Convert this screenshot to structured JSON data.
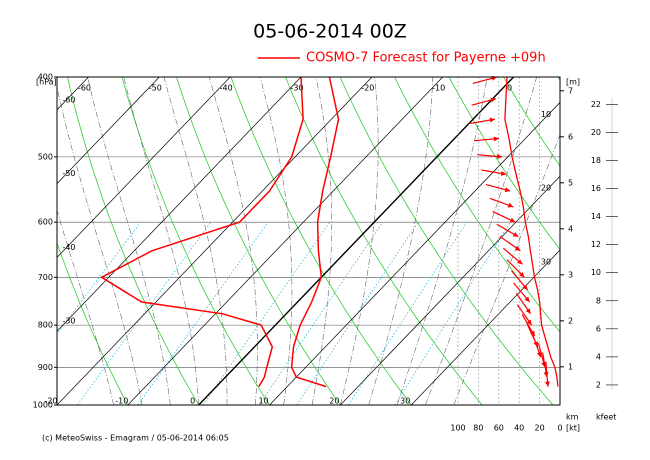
{
  "chart_data": {
    "type": "skewt",
    "title": "05-06-2014  00Z",
    "ylabel": "[hPa]",
    "log_y": true,
    "ylim": [
      1000,
      400
    ],
    "yticks": [
      400,
      500,
      600,
      700,
      800,
      900,
      1000
    ],
    "xlim": [
      -20,
      51
    ],
    "xticks": [
      -60,
      -50,
      -40,
      -30,
      -20,
      -10,
      0,
      10,
      20,
      30
    ],
    "series": [
      {
        "name": "COSMO-7 Forecast for Payerne   +09h",
        "color": "#ff0000",
        "pressure": [
          950,
          925,
          900,
          850,
          800,
          750,
          700,
          650,
          600,
          550,
          500,
          450,
          400
        ],
        "values": [
          15.5,
          10,
          8,
          5.5,
          3.5,
          2,
          0,
          -4,
          -8,
          -11.5,
          -15,
          -19,
          -26
        ]
      },
      {
        "color": "#ff0000",
        "pressure": [
          950,
          925,
          900,
          850,
          800,
          775,
          750,
          700,
          650,
          600,
          550,
          500,
          450,
          400
        ],
        "values": [
          6,
          5.5,
          4.5,
          2.5,
          -2,
          -9,
          -22,
          -31,
          -27.5,
          -19,
          -19,
          -20.5,
          -24,
          -30
        ]
      }
    ],
    "wind": {
      "color": "#ff0000",
      "unit": "[kt]",
      "xlim": [
        100,
        0
      ],
      "xticks": [
        100,
        80,
        60,
        40,
        20,
        0
      ],
      "pressure": [
        400,
        425,
        450,
        475,
        500,
        525,
        550,
        575,
        600,
        625,
        650,
        675,
        700,
        725,
        750,
        775,
        800,
        825,
        850,
        875,
        900,
        925,
        950
      ],
      "speed": [
        52,
        53,
        54,
        50,
        47,
        43,
        39,
        36,
        34,
        31,
        29,
        27,
        25,
        22,
        20,
        19,
        18,
        15,
        12,
        9,
        5,
        3,
        2
      ],
      "direction": [
        255,
        255,
        260,
        265,
        275,
        280,
        285,
        290,
        295,
        300,
        305,
        310,
        315,
        320,
        320,
        325,
        325,
        330,
        335,
        340,
        345,
        350,
        355
      ]
    },
    "height_axis": {
      "label": "[m]",
      "unit": "km",
      "lim": [
        0.17,
        7.3
      ],
      "ticks": [
        1,
        2,
        3,
        4,
        5,
        6,
        7
      ]
    },
    "kfeet_axis": {
      "label": "kfeet",
      "lim": [
        0.57,
        23.95
      ],
      "ticks": [
        2,
        4,
        6,
        8,
        10,
        12,
        14,
        16,
        18,
        20,
        22
      ]
    },
    "footer": "(c) MeteoSwiss - Emagram  /  05-06-2014 06:05"
  }
}
